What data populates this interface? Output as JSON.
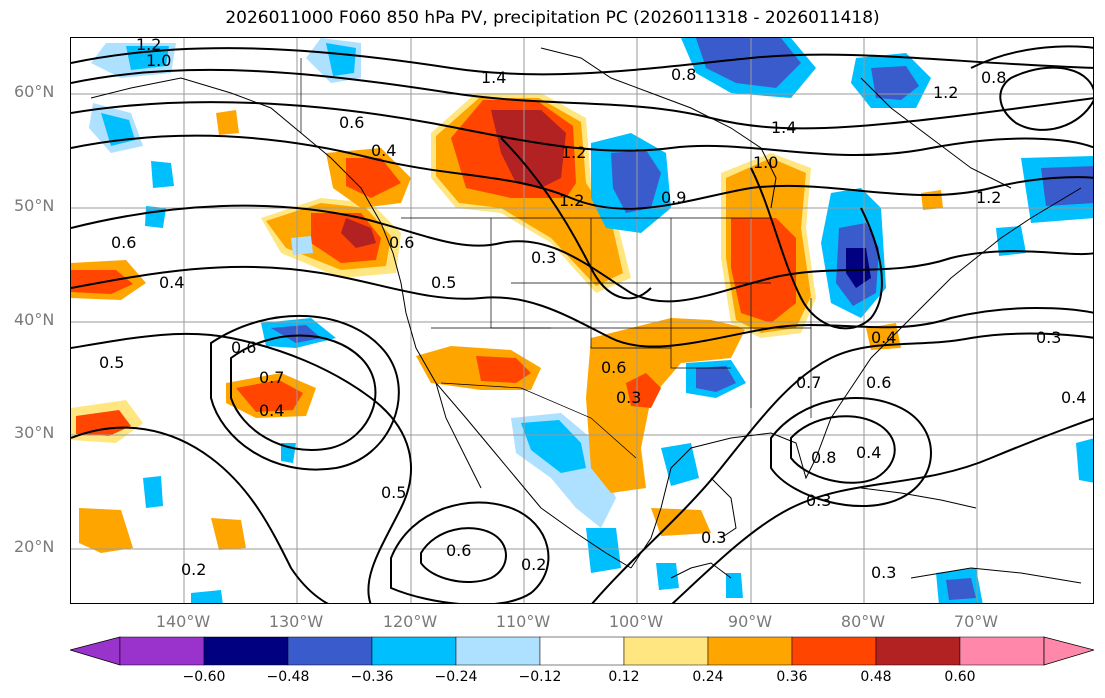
{
  "title": "2026011000 F060 850 hPa PV, precipitation PC (2026011318 - 2026011418)",
  "map": {
    "lat_labels": [
      "60°N",
      "50°N",
      "40°N",
      "30°N",
      "20°N"
    ],
    "lon_labels": [
      "140°W",
      "130°W",
      "120°W",
      "110°W",
      "100°W",
      "90°W",
      "80°W",
      "70°W"
    ],
    "contour_labels": [
      "1.2",
      "1.0",
      "1.4",
      "0.6",
      "0.4",
      "1.2",
      "0.6",
      "0.5",
      "0.3",
      "1.2",
      "0.9",
      "0.6",
      "0.4",
      "0.5",
      "0.6",
      "0.7",
      "0.4",
      "0.6",
      "0.3",
      "0.7",
      "0.6",
      "0.8",
      "0.4",
      "0.3",
      "0.5",
      "0.6",
      "0.2",
      "0.3",
      "0.2",
      "0.3",
      "0.4",
      "1.4",
      "1.0",
      "0.8",
      "1.2",
      "0.8",
      "1.2",
      "0.3",
      "0.4"
    ],
    "colors": {
      "c_0_60": "#9933cc",
      "c_0_48": "#000080",
      "c_0_36": "#3a5bcc",
      "c_0_24": "#00bfff",
      "c_0_12": "#aee0ff",
      "c_neutral": "#ffffff",
      "p_0_12": "#ffe680",
      "p_0_24": "#ffa500",
      "p_0_36": "#ff4500",
      "p_0_48": "#b22222",
      "p_0_60": "#ff88aa"
    }
  },
  "colorbar": {
    "ticks": [
      "−0.60",
      "−0.48",
      "−0.36",
      "−0.24",
      "−0.12",
      "0.12",
      "0.24",
      "0.36",
      "0.48",
      "0.60"
    ]
  }
}
